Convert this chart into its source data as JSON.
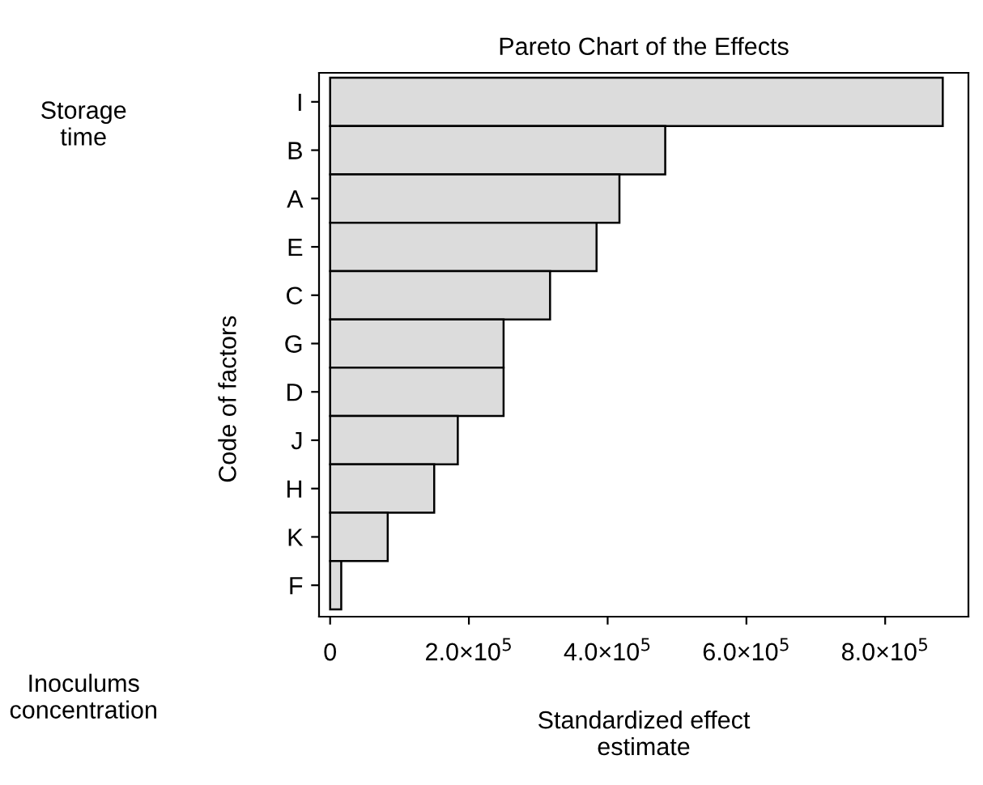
{
  "chart_data": {
    "type": "bar",
    "orientation": "horizontal",
    "title": "Pareto Chart of the Effects",
    "xlabel": "Standardized effect\nestimate",
    "ylabel": "Code of factors",
    "categories": [
      "I",
      "B",
      "A",
      "E",
      "C",
      "G",
      "D",
      "J",
      "H",
      "K",
      "F"
    ],
    "values": [
      883000,
      483000,
      417000,
      384000,
      317000,
      250000,
      250000,
      184000,
      150000,
      83000,
      16000
    ],
    "color": "#dcdcdc",
    "xlim": [
      -16000,
      920000
    ],
    "xticks": [
      0,
      {
        "value": 200000,
        "label": "2.0×10$^{5}$"
      },
      {
        "value": 400000,
        "label": "4.0×10$^{5}$"
      },
      {
        "value": 600000,
        "label": "6.0×10$^{5}$"
      },
      {
        "value": 800000,
        "label": "8.0×10$^{5}$"
      }
    ],
    "grid": false,
    "annotations": [
      "Storage\ntime",
      "Inoculums\nconcentration"
    ]
  }
}
